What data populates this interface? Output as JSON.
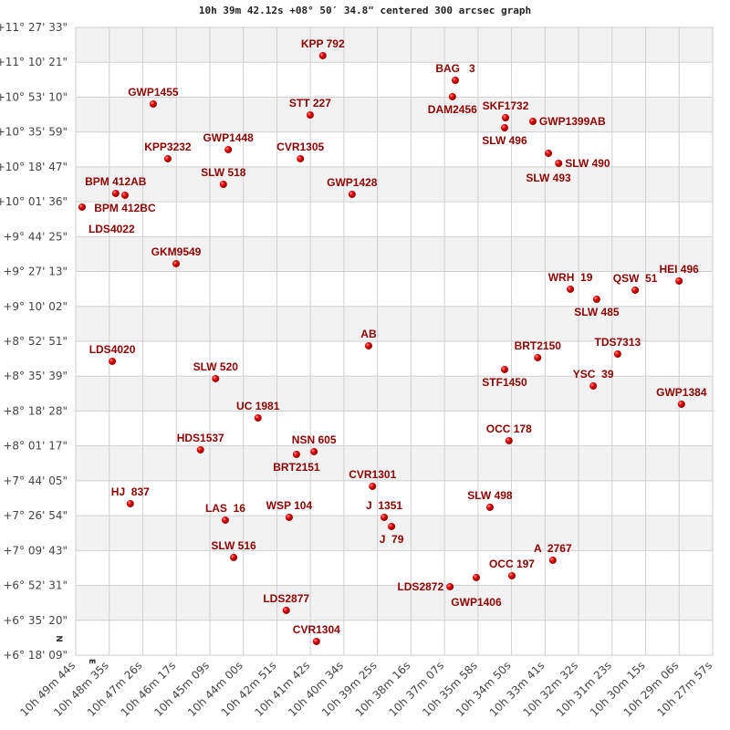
{
  "chart_data": {
    "type": "scatter",
    "title": "10h 39m 42.12s +08° 50′ 34.8\" centered 300 arcsec graph",
    "xlabel": "",
    "ylabel": "",
    "grid": true,
    "x_axis_reversed": true,
    "xlim": [
      "10h 49m 44s",
      "10h 27m 57s"
    ],
    "ylim": [
      "+6° 18' 09\"",
      "+11° 27' 33\""
    ],
    "x_ticks": [
      "10h 49m 44s",
      "10h 48m 35s",
      "10h 47m 26s",
      "10h 46m 17s",
      "10h 45m 09s",
      "10h 44m 00s",
      "10h 42m 51s",
      "10h 41m 42s",
      "10h 40m 34s",
      "10h 39m 25s",
      "10h 38m 16s",
      "10h 37m 07s",
      "10h 35m 58s",
      "10h 34m 50s",
      "10h 33m 41s",
      "10h 32m 32s",
      "10h 31m 23s",
      "10h 30m 15s",
      "10h 29m 06s",
      "10h 27m 57s"
    ],
    "y_ticks": [
      "+11° 27' 33\"",
      "+11° 10' 21\"",
      "+10° 53' 10\"",
      "+10° 35' 59\"",
      "+10° 18' 47\"",
      "+10° 01' 36\"",
      "+9° 44' 25\"",
      "+9° 27' 13\"",
      "+9° 10' 02\"",
      "+8° 52' 51\"",
      "+8° 35' 39\"",
      "+8° 18' 28\"",
      "+8° 01' 17\"",
      "+7° 44' 05\"",
      "+7° 26' 54\"",
      "+7° 09' 43\"",
      "+6° 52' 31\"",
      "+6° 35' 20\"",
      "+6° 18' 09\""
    ],
    "direction_markers": {
      "north": "N",
      "east": "E"
    },
    "marker_color": "#dd0000",
    "label_color": "#8b0000",
    "points": [
      {
        "name": "KPP 792",
        "ra": "10h 41m 17s",
        "dec": "+11° 13' 37\""
      },
      {
        "name": "BAG   3",
        "ra": "10h 36m 45s",
        "dec": "+11° 01' 28\""
      },
      {
        "name": "DAM2456",
        "ra": "10h 36m 51s",
        "dec": "+10° 53' 23\""
      },
      {
        "name": "GWP1455",
        "ra": "10h 47m 05s",
        "dec": "+10° 49' 47\""
      },
      {
        "name": "STT 227",
        "ra": "10h 41m 43s",
        "dec": "+10° 44' 23\""
      },
      {
        "name": "SKF1732",
        "ra": "10h 35m 02s",
        "dec": "+10° 43' 02\""
      },
      {
        "name": "GWP1399AB",
        "ra": "10h 34m 06s",
        "dec": "+10° 41' 14\""
      },
      {
        "name": "SLW 496",
        "ra": "10h 35m 04s",
        "dec": "+10° 38' 05\""
      },
      {
        "name": "GWP1448",
        "ra": "10h 44m 31s",
        "dec": "+10° 27' 18\""
      },
      {
        "name": "SLW 493",
        "ra": "10h 33m 34s",
        "dec": "+10° 25' 30\""
      },
      {
        "name": "CVR1305",
        "ra": "10h 42m 03s",
        "dec": "+10° 22' 48\""
      },
      {
        "name": "KPP3232",
        "ra": "10h 46m 35s",
        "dec": "+10° 22' 48\""
      },
      {
        "name": "SLW 490",
        "ra": "10h 33m 13s",
        "dec": "+10° 20' 33\""
      },
      {
        "name": "SLW 518",
        "ra": "10h 44m 41s",
        "dec": "+10° 10' 12\""
      },
      {
        "name": "BPM 412AB",
        "ra": "10h 48m 22s",
        "dec": "+10° 05' 43\""
      },
      {
        "name": "BPM 412BC",
        "ra": "10h 48m 03s",
        "dec": "+10° 04' 49\""
      },
      {
        "name": "GWP1428",
        "ra": "10h 40m 17s",
        "dec": "+10° 05' 16\""
      },
      {
        "name": "LDS4022",
        "ra": "10h 49m 31s",
        "dec": "+9° 58' 58\""
      },
      {
        "name": "GKM9549",
        "ra": "10h 46m 18s",
        "dec": "+9° 31' 05\""
      },
      {
        "name": "HEI 496",
        "ra": "10h 29m 06s",
        "dec": "+9° 22' 33\""
      },
      {
        "name": "WRH  19",
        "ra": "10h 32m 49s",
        "dec": "+9° 18' 30\""
      },
      {
        "name": "QSW  51",
        "ra": "10h 30m 36s",
        "dec": "+9° 18' 03\""
      },
      {
        "name": "SLW 485",
        "ra": "10h 31m 55s",
        "dec": "+9° 13' 33\""
      },
      {
        "name": "AB",
        "ra": "10h 39m 43s",
        "dec": "+8° 50' 37\""
      },
      {
        "name": "LDS4020",
        "ra": "10h 48m 29s",
        "dec": "+8° 42' 58\""
      },
      {
        "name": "TDS7313",
        "ra": "10h 31m 12s",
        "dec": "+8° 46' 34\""
      },
      {
        "name": "BRT2150",
        "ra": "10h 33m 56s",
        "dec": "+8° 44' 46\""
      },
      {
        "name": "STF1450",
        "ra": "10h 35m 04s",
        "dec": "+8° 38' 55\""
      },
      {
        "name": "SLW 520",
        "ra": "10h 44m 57s",
        "dec": "+8° 34' 26\""
      },
      {
        "name": "YSC  39",
        "ra": "10h 32m 02s",
        "dec": "+8° 30' 50\""
      },
      {
        "name": "GWP1384",
        "ra": "10h 29m 01s",
        "dec": "+8° 21' 50\""
      },
      {
        "name": "UC 1981",
        "ra": "10h 43m 30s",
        "dec": "+8° 15' 06\""
      },
      {
        "name": "OCC 178",
        "ra": "10h 34m 55s",
        "dec": "+8° 03' 51\""
      },
      {
        "name": "HDS1537",
        "ra": "10h 45m 28s",
        "dec": "+7° 59' 21\""
      },
      {
        "name": "BRT2151",
        "ra": "10h 42m 11s",
        "dec": "+7° 57' 06\""
      },
      {
        "name": "NSN 605",
        "ra": "10h 41m 35s",
        "dec": "+7° 58' 27\""
      },
      {
        "name": "CVR1301",
        "ra": "10h 39m 35s",
        "dec": "+7° 41' 22\""
      },
      {
        "name": "HJ  837",
        "ra": "10h 47m 52s",
        "dec": "+7° 32' 49\""
      },
      {
        "name": "SLW 498",
        "ra": "10h 35m 34s",
        "dec": "+7° 31' 02\""
      },
      {
        "name": "WSP 104",
        "ra": "10h 42m 26s",
        "dec": "+7° 26' 05\""
      },
      {
        "name": "LAS  16",
        "ra": "10h 44m 37s",
        "dec": "+7° 24' 44\""
      },
      {
        "name": "J  1351",
        "ra": "10h 39m 11s",
        "dec": "+7° 26' 05\""
      },
      {
        "name": "J  79",
        "ra": "10h 38m 56s",
        "dec": "+7° 21' 35\""
      },
      {
        "name": "A  2767",
        "ra": "10h 33m 25s",
        "dec": "+7° 04' 57\""
      },
      {
        "name": "SLW 516",
        "ra": "10h 44m 20s",
        "dec": "+7° 06' 18\""
      },
      {
        "name": "OCC 197",
        "ra": "10h 34m 49s",
        "dec": "+6° 57' 18\""
      },
      {
        "name": "GWP1406",
        "ra": "10h 36m 02s",
        "dec": "+6° 56' 24\""
      },
      {
        "name": "LDS2872",
        "ra": "10h 36m 56s",
        "dec": "+6° 51' 54\""
      },
      {
        "name": "LDS2877",
        "ra": "10h 42m 32s",
        "dec": "+6° 40' 13\""
      },
      {
        "name": "CVR1304",
        "ra": "10h 41m 30s",
        "dec": "+6° 24' 55\""
      }
    ]
  }
}
